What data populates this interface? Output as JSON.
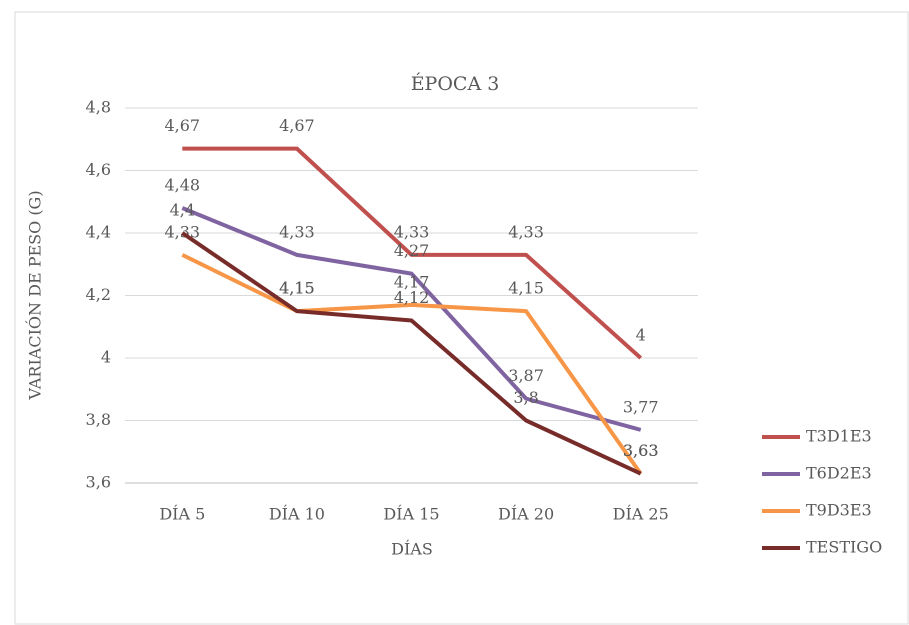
{
  "chart_data": {
    "type": "line",
    "title": "ÉPOCA 3",
    "xlabel": "DÍAS",
    "ylabel": "VARIACIÓN DE PESO (G)",
    "categories": [
      "DÍA 5",
      "DÍA 10",
      "DÍA 15",
      "DÍA 20",
      "DÍA 25"
    ],
    "series": [
      {
        "name": "T3D1E3",
        "color": "#c0504d",
        "values": [
          4.67,
          4.67,
          4.33,
          4.33,
          4
        ],
        "value_labels": [
          "4,67",
          "4,67",
          "4,33",
          "4,33",
          "4"
        ]
      },
      {
        "name": "T6D2E3",
        "color": "#8064a2",
        "values": [
          4.48,
          4.33,
          4.27,
          3.87,
          3.77
        ],
        "value_labels": [
          "4,48",
          "4,33",
          "4,27",
          "3,87",
          "3,77"
        ]
      },
      {
        "name": "T9D3E3",
        "color": "#f79646",
        "values": [
          4.33,
          4.15,
          4.17,
          4.15,
          3.63
        ],
        "value_labels": [
          "4,33",
          "4,15",
          "4,17",
          "4,15",
          "3,63"
        ]
      },
      {
        "name": "TESTIGO",
        "color": "#772c2a",
        "values": [
          4.4,
          4.15,
          4.12,
          3.8,
          3.63
        ],
        "value_labels": [
          "4,4",
          "4,15",
          "4,12",
          "3,8",
          "3,63"
        ]
      }
    ],
    "ylim": [
      3.6,
      4.8
    ],
    "yticks": [
      {
        "value": 3.6,
        "label": "3,6"
      },
      {
        "value": 3.8,
        "label": "3,8"
      },
      4,
      {
        "value": 4.2,
        "label": "4,2"
      },
      {
        "value": 4.4,
        "label": "4,4"
      },
      {
        "value": 4.6,
        "label": "4,6"
      },
      {
        "value": 4.8,
        "label": "4,8"
      }
    ],
    "grid": true,
    "legend": "right"
  }
}
